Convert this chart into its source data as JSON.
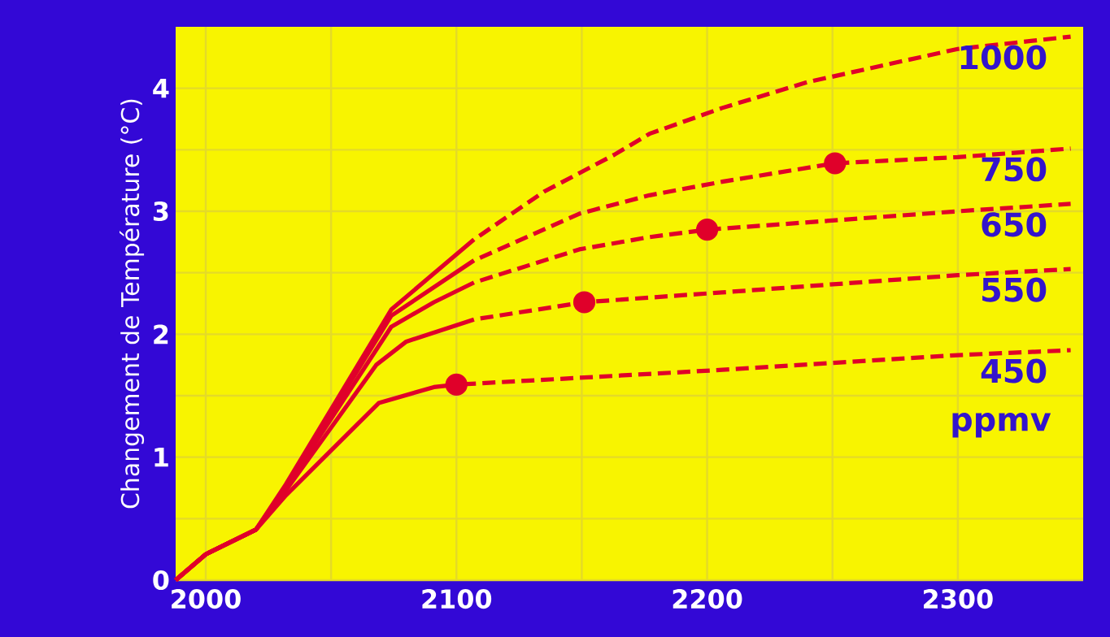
{
  "chart_data": {
    "type": "line",
    "ylabel": "Changement de Température (°C)",
    "xlim": [
      1988,
      2350
    ],
    "ylim": [
      0,
      4.5
    ],
    "xticks": [
      2000,
      {
        "value": 2050,
        "label": null
      },
      2100,
      {
        "value": 2150,
        "label": null
      },
      2200,
      {
        "value": 2250,
        "label": null
      },
      2300
    ],
    "yticks": [
      0,
      {
        "value": 0.5,
        "label": null
      },
      1,
      {
        "value": 1.5,
        "label": null
      },
      2,
      {
        "value": 2.5,
        "label": null
      },
      3,
      {
        "value": 3.5,
        "label": null
      },
      4
    ],
    "grid": true,
    "annotations": [
      "ppmv"
    ],
    "series": [
      {
        "color": "#e0002a",
        "line_style": "solid",
        "marker": "none",
        "x": [
          1988,
          2000,
          2020,
          2032,
          2074,
          2107
        ],
        "values": [
          0,
          0.21,
          0.41,
          0.78,
          2.2,
          2.77
        ]
      },
      {
        "name": "1000",
        "color": "#e0002a",
        "line_style": "dashed",
        "marker": "none",
        "x": [
          2107,
          2135,
          2163,
          2177,
          2206,
          2240,
          2271,
          2300,
          2345
        ],
        "values": [
          2.77,
          3.16,
          3.46,
          3.63,
          3.84,
          4.05,
          4.19,
          4.32,
          4.42
        ]
      },
      {
        "color": "#e0002a",
        "line_style": "solid",
        "marker": "none",
        "x": [
          1988,
          2000,
          2020,
          2032,
          2074,
          2107
        ],
        "values": [
          0,
          0.21,
          0.41,
          0.76,
          2.15,
          2.6
        ]
      },
      {
        "name": "750",
        "color": "#e0002a",
        "line_style": "dashed",
        "marker": "none",
        "x": [
          2107,
          2149,
          2177,
          2206,
          2251,
          2300,
          2345
        ],
        "values": [
          2.6,
          2.98,
          3.13,
          3.24,
          3.39,
          3.44,
          3.51
        ]
      },
      {
        "color": "#e0002a",
        "line_style": "solid",
        "marker": "none",
        "x": [
          1988,
          2000,
          2020,
          2032,
          2074,
          2091,
          2107
        ],
        "values": [
          0,
          0.21,
          0.41,
          0.75,
          2.06,
          2.26,
          2.42
        ]
      },
      {
        "name": "650",
        "color": "#e0002a",
        "line_style": "dashed",
        "marker": "none",
        "x": [
          2107,
          2149,
          2177,
          2200,
          2300,
          2345
        ],
        "values": [
          2.42,
          2.69,
          2.79,
          2.85,
          3.0,
          3.06
        ]
      },
      {
        "color": "#e0002a",
        "line_style": "solid",
        "marker": "none",
        "x": [
          1988,
          2000,
          2020,
          2032,
          2068,
          2080,
          2107
        ],
        "values": [
          0,
          0.21,
          0.41,
          0.73,
          1.75,
          1.94,
          2.12
        ]
      },
      {
        "name": "550",
        "color": "#e0002a",
        "line_style": "dashed",
        "marker": "none",
        "x": [
          2107,
          2151,
          2206,
          2300,
          2345
        ],
        "values": [
          2.12,
          2.26,
          2.34,
          2.48,
          2.53
        ]
      },
      {
        "color": "#e0002a",
        "line_style": "solid",
        "marker": "none",
        "x": [
          1988,
          2000,
          2020,
          2032,
          2069,
          2091,
          2100
        ],
        "values": [
          0,
          0.21,
          0.41,
          0.69,
          1.44,
          1.57,
          1.59
        ]
      },
      {
        "name": "450",
        "color": "#e0002a",
        "line_style": "dashed",
        "marker": "none",
        "x": [
          2100,
          2206,
          2300,
          2345
        ],
        "values": [
          1.59,
          1.71,
          1.83,
          1.87
        ]
      },
      {
        "type": "scatter",
        "color": "#e0002a",
        "marker": "circle",
        "x": [
          2100,
          2151,
          2200,
          2251
        ],
        "values": [
          1.59,
          2.26,
          2.85,
          3.39
        ]
      }
    ]
  }
}
